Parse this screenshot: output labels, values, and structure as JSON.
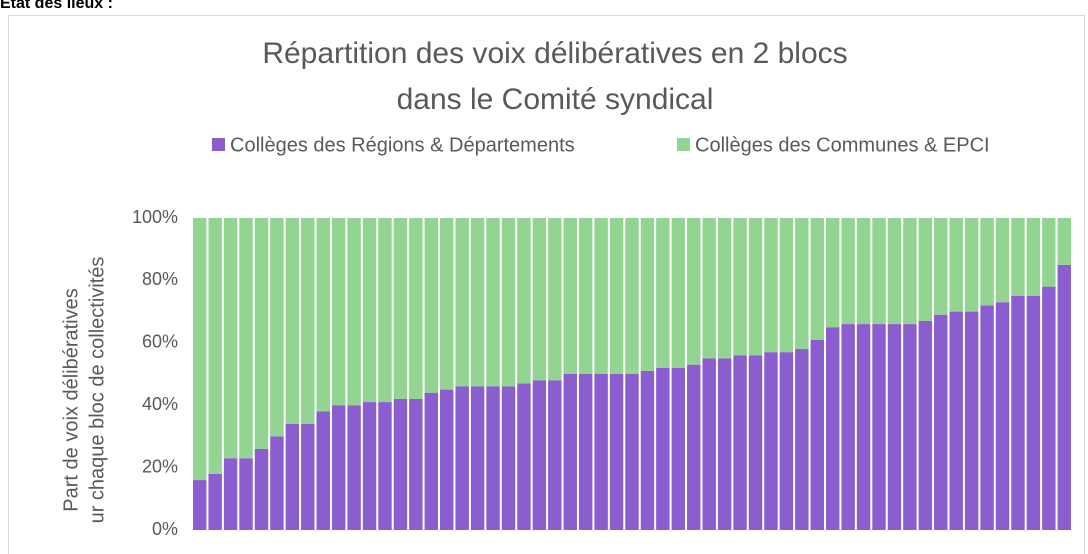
{
  "heading": "État des lieux :",
  "chart_data": {
    "type": "stacked_bar",
    "title": "Répartition des voix délibératives en 2 blocs",
    "subtitle": "dans le Comité syndical",
    "y_label": [
      "Part de voix délibératives",
      "ur chaque bloc de collectivités"
    ],
    "categories": [
      null,
      null,
      null,
      null,
      null,
      null,
      null,
      null,
      null,
      null,
      null,
      null,
      null,
      null,
      null,
      null,
      null,
      null,
      null,
      null,
      null,
      null,
      null,
      null,
      null,
      null,
      null,
      null,
      null,
      null,
      null,
      null,
      null,
      null,
      null,
      null,
      null,
      null,
      null,
      null,
      null,
      null,
      null,
      null,
      null,
      null,
      null,
      null,
      null,
      null,
      null,
      null,
      null,
      null,
      null,
      null,
      null
    ],
    "series": [
      {
        "name": "Collèges des Régions & Départements",
        "color": "#8b5dcf",
        "values": [
          16,
          18,
          23,
          23,
          26,
          30,
          34,
          34,
          38,
          40,
          40,
          41,
          41,
          42,
          42,
          44,
          45,
          46,
          46,
          46,
          46,
          47,
          48,
          48,
          50,
          50,
          50,
          50,
          50,
          51,
          52,
          52,
          53,
          55,
          55,
          56,
          56,
          57,
          57,
          58,
          61,
          65,
          66,
          66,
          66,
          66,
          66,
          67,
          69,
          70,
          70,
          72,
          73,
          75,
          75,
          78,
          85
        ]
      },
      {
        "name": "Collèges des Communes & EPCI",
        "color": "#93d493",
        "values": [
          84,
          82,
          77,
          77,
          74,
          70,
          66,
          66,
          62,
          60,
          60,
          59,
          59,
          58,
          58,
          56,
          55,
          54,
          54,
          54,
          54,
          53,
          52,
          52,
          50,
          50,
          50,
          50,
          50,
          49,
          48,
          48,
          47,
          45,
          45,
          44,
          44,
          43,
          43,
          42,
          39,
          35,
          34,
          34,
          34,
          34,
          34,
          33,
          31,
          30,
          30,
          28,
          27,
          25,
          25,
          22,
          15
        ]
      }
    ],
    "ylim": [
      0,
      100
    ],
    "yticks": [
      {
        "value": 0,
        "label": "0%"
      },
      {
        "value": 20,
        "label": "20%"
      },
      {
        "value": 40,
        "label": "40%"
      },
      {
        "value": 60,
        "label": "60%"
      },
      {
        "value": 80,
        "label": "80%"
      },
      {
        "value": 100,
        "label": "100%"
      }
    ]
  }
}
